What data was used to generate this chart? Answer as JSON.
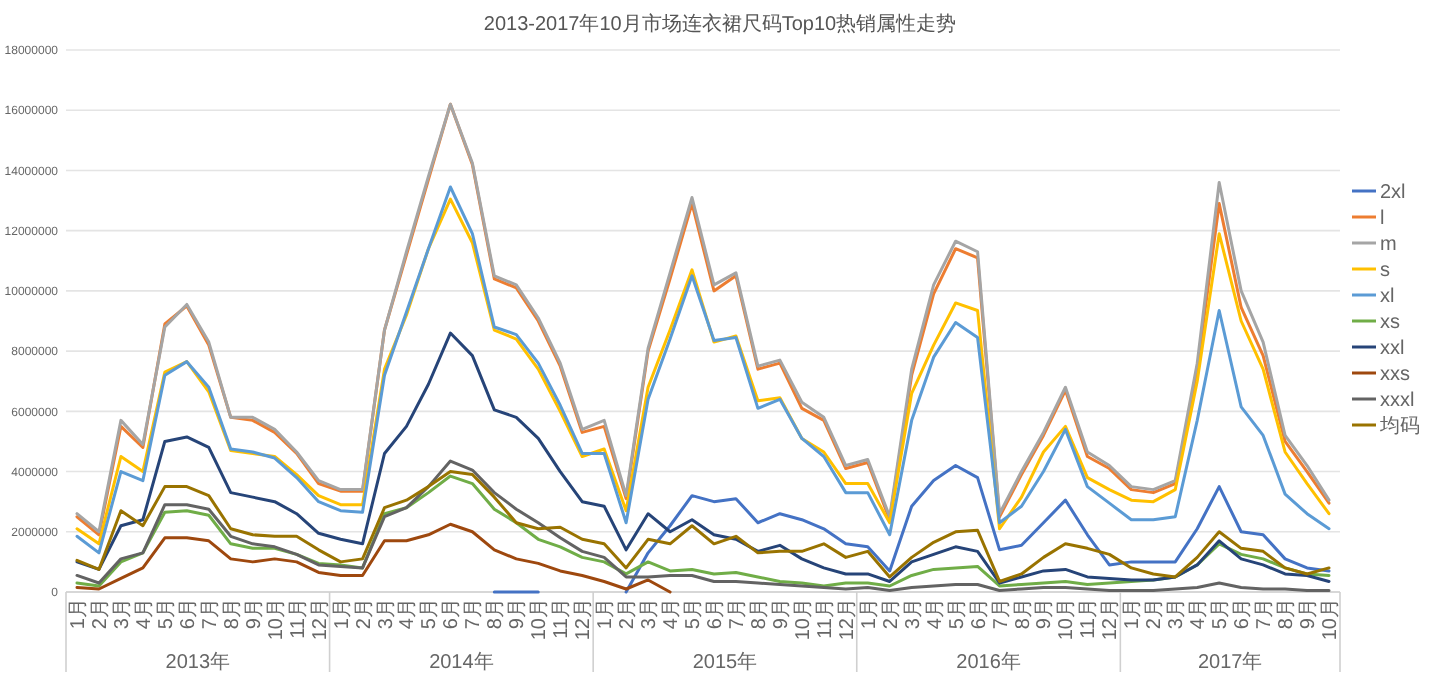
{
  "chart_data": {
    "type": "line",
    "title": "2013-2017年10月市场连衣裙尺码Top10热销属性走势",
    "categories": [
      "1月",
      "2月",
      "3月",
      "4月",
      "5月",
      "6月",
      "7月",
      "8月",
      "9月",
      "10月",
      "11月",
      "12月",
      "1月",
      "2月",
      "3月",
      "4月",
      "5月",
      "6月",
      "7月",
      "8月",
      "9月",
      "10月",
      "11月",
      "12月",
      "1月",
      "2月",
      "3月",
      "4月",
      "5月",
      "6月",
      "7月",
      "8月",
      "9月",
      "10月",
      "11月",
      "12月",
      "1月",
      "2月",
      "3月",
      "4月",
      "5月",
      "6月",
      "7月",
      "8月",
      "9月",
      "10月",
      "11月",
      "12月",
      "1月",
      "2月",
      "3月",
      "4月",
      "5月",
      "6月",
      "7月",
      "8月",
      "9月",
      "10月"
    ],
    "annotations": [
      "2013年",
      "2014年",
      "2015年",
      "2016年",
      "2017年"
    ],
    "ylim": [
      0,
      18000000
    ],
    "yticks": [
      0,
      2000000,
      4000000,
      6000000,
      8000000,
      10000000,
      12000000,
      14000000,
      16000000,
      18000000
    ],
    "grid": "y",
    "legend": "right",
    "marker": "none",
    "line_style": "solid",
    "series": [
      {
        "name": "2xl",
        "color": "#4472c4",
        "values": [
          null,
          null,
          null,
          null,
          null,
          null,
          null,
          null,
          null,
          null,
          null,
          null,
          null,
          null,
          null,
          null,
          null,
          null,
          null,
          0,
          0,
          0,
          null,
          null,
          null,
          0,
          1300000.0,
          2200000.0,
          3200000.0,
          3000000.0,
          3100000.0,
          2300000.0,
          2600000.0,
          2400000.0,
          2100000.0,
          1600000.0,
          1500000.0,
          700000.0,
          2850000.0,
          3700000.0,
          4200000.0,
          3800000.0,
          1400000.0,
          1550000.0,
          2300000.0,
          3050000.0,
          1900000.0,
          900000.0,
          1000000.0,
          1000000.0,
          1000000.0,
          2100000.0,
          3500000.0,
          2000000.0,
          1900000.0,
          1100000.0,
          800000.0,
          700000.0
        ]
      },
      {
        "name": "l",
        "color": "#ed7d31",
        "values": [
          2500000.0,
          1900000.0,
          5500000.0,
          4800000.0,
          8900000.0,
          9500000.0,
          8200000.0,
          5800000.0,
          5700000.0,
          5300000.0,
          4600000.0,
          3600000.0,
          3350000.0,
          3350000.0,
          8700000.0,
          11200000.0,
          13700000.0,
          16200000.0,
          14200000.0,
          10400000.0,
          10100000.0,
          9000000.0,
          7500000.0,
          5300000.0,
          5500000.0,
          3100000.0,
          8000000.0,
          10400000.0,
          12900000.0,
          10000000.0,
          10500000.0,
          7400000.0,
          7600000.0,
          6100000.0,
          5700000.0,
          4100000.0,
          4300000.0,
          2400000.0,
          7200000.0,
          9900000.0,
          11400000.0,
          11100000.0,
          2500000.0,
          3900000.0,
          5200000.0,
          6700000.0,
          4500000.0,
          4100000.0,
          3400000.0,
          3300000.0,
          3600000.0,
          7400000.0,
          12900000.0,
          9450000.0,
          7850000.0,
          5000000.0,
          4000000.0,
          2950000.0
        ]
      },
      {
        "name": "m",
        "color": "#a5a5a5",
        "values": [
          2600000.0,
          2000000.0,
          5700000.0,
          4900000.0,
          8800000.0,
          9550000.0,
          8300000.0,
          5800000.0,
          5800000.0,
          5400000.0,
          4650000.0,
          3700000.0,
          3400000.0,
          3400000.0,
          8700000.0,
          11300000.0,
          13800000.0,
          16200000.0,
          14250000.0,
          10500000.0,
          10200000.0,
          9100000.0,
          7600000.0,
          5400000.0,
          5700000.0,
          3200000.0,
          8100000.0,
          10600000.0,
          13100000.0,
          10200000.0,
          10600000.0,
          7500000.0,
          7700000.0,
          6300000.0,
          5800000.0,
          4200000.0,
          4400000.0,
          2500000.0,
          7400000.0,
          10200000.0,
          11650000.0,
          11300000.0,
          2600000.0,
          4000000.0,
          5300000.0,
          6800000.0,
          4650000.0,
          4200000.0,
          3500000.0,
          3400000.0,
          3700000.0,
          7600000.0,
          13600000.0,
          10000000.0,
          8300000.0,
          5200000.0,
          4200000.0,
          3050000.0
        ]
      },
      {
        "name": "s",
        "color": "#ffc000",
        "values": [
          2100000.0,
          1600000.0,
          4500000.0,
          4000000.0,
          7300000.0,
          7650000.0,
          6650000.0,
          4700000.0,
          4600000.0,
          4500000.0,
          3900000.0,
          3200000.0,
          2900000.0,
          2900000.0,
          7400000.0,
          9200000.0,
          11400000.0,
          13050000.0,
          11600000.0,
          8700000.0,
          8400000.0,
          7400000.0,
          6000000.0,
          4500000.0,
          4750000.0,
          2700000.0,
          6800000.0,
          8700000.0,
          10700000.0,
          8300000.0,
          8500000.0,
          6350000.0,
          6450000.0,
          5100000.0,
          4650000.0,
          3600000.0,
          3600000.0,
          2300000.0,
          6600000.0,
          8200000.0,
          9600000.0,
          9350000.0,
          2100000.0,
          3150000.0,
          4650000.0,
          5500000.0,
          3800000.0,
          3400000.0,
          3050000.0,
          3000000.0,
          3400000.0,
          7000000.0,
          11900000.0,
          9000000.0,
          7400000.0,
          4650000.0,
          3600000.0,
          2600000.0
        ]
      },
      {
        "name": "xl",
        "color": "#5b9bd5",
        "values": [
          1850000.0,
          1300000.0,
          4000000.0,
          3700000.0,
          7200000.0,
          7650000.0,
          6800000.0,
          4750000.0,
          4650000.0,
          4450000.0,
          3800000.0,
          3000000.0,
          2700000.0,
          2650000.0,
          7200000.0,
          9300000.0,
          11400000.0,
          13450000.0,
          11900000.0,
          8800000.0,
          8550000.0,
          7600000.0,
          6200000.0,
          4600000.0,
          4600000.0,
          2300000.0,
          6400000.0,
          8400000.0,
          10500000.0,
          8350000.0,
          8450000.0,
          6100000.0,
          6400000.0,
          5100000.0,
          4500000.0,
          3300000.0,
          3300000.0,
          1900000.0,
          5700000.0,
          7800000.0,
          8950000.0,
          8450000.0,
          2300000.0,
          2850000.0,
          4000000.0,
          5400000.0,
          3500000.0,
          2950000.0,
          2400000.0,
          2400000.0,
          2500000.0,
          5700000.0,
          9350000.0,
          6150000.0,
          5200000.0,
          3250000.0,
          2600000.0,
          2100000.0
        ]
      },
      {
        "name": "xs",
        "color": "#70ad47",
        "values": [
          300000.0,
          200000.0,
          1000000.0,
          1300000.0,
          2650000.0,
          2700000.0,
          2550000.0,
          1600000.0,
          1450000.0,
          1450000.0,
          1250000.0,
          950000.0,
          900000.0,
          800000.0,
          2600000.0,
          2800000.0,
          3300000.0,
          3850000.0,
          3600000.0,
          2750000.0,
          2300000.0,
          1750000.0,
          1500000.0,
          1150000.0,
          1000000.0,
          600000.0,
          1000000.0,
          700000.0,
          750000.0,
          600000.0,
          650000.0,
          500000.0,
          350000.0,
          300000.0,
          200000.0,
          300000.0,
          300000.0,
          200000.0,
          550000.0,
          750000.0,
          800000.0,
          850000.0,
          200000.0,
          250000.0,
          300000.0,
          350000.0,
          250000.0,
          300000.0,
          350000.0,
          400000.0,
          500000.0,
          900000.0,
          1600000.0,
          1250000.0,
          1100000.0,
          800000.0,
          600000.0,
          550000.0
        ]
      },
      {
        "name": "xxl",
        "color": "#264478",
        "values": [
          1000000.0,
          750000.0,
          2200000.0,
          2400000.0,
          5000000.0,
          5150000.0,
          4800000.0,
          3300000.0,
          3150000.0,
          3000000.0,
          2600000.0,
          1950000.0,
          1750000.0,
          1600000.0,
          4600000.0,
          5500000.0,
          6900000.0,
          8600000.0,
          7850000.0,
          6050000.0,
          5800000.0,
          5100000.0,
          4000000.0,
          3000000.0,
          2850000.0,
          1400000.0,
          2600000.0,
          2000000.0,
          2400000.0,
          1900000.0,
          1750000.0,
          1350000.0,
          1550000.0,
          1100000.0,
          800000.0,
          600000.0,
          600000.0,
          350000.0,
          1000000.0,
          1250000.0,
          1500000.0,
          1350000.0,
          300000.0,
          500000.0,
          700000.0,
          750000.0,
          500000.0,
          450000.0,
          400000.0,
          400000.0,
          500000.0,
          900000.0,
          1700000.0,
          1100000.0,
          900000.0,
          600000.0,
          550000.0,
          350000.0
        ]
      },
      {
        "name": "xxs",
        "color": "#9e480e",
        "values": [
          150000.0,
          100000.0,
          450000.0,
          800000.0,
          1800000.0,
          1800000.0,
          1700000.0,
          1100000.0,
          1000000.0,
          1100000.0,
          1000000.0,
          650000.0,
          550000.0,
          550000.0,
          1700000.0,
          1700000.0,
          1900000.0,
          2250000.0,
          2000000.0,
          1400000.0,
          1100000.0,
          950000.0,
          700000.0,
          550000.0,
          350000.0,
          100000.0,
          400000.0,
          0,
          null,
          null,
          null,
          null,
          null,
          null,
          null,
          null,
          null,
          null,
          null,
          null,
          null,
          null,
          null,
          null,
          null,
          null,
          null,
          null,
          null,
          null,
          null,
          null,
          null,
          null,
          null,
          null,
          null,
          null
        ]
      },
      {
        "name": "xxxl",
        "color": "#636363",
        "values": [
          550000.0,
          300000.0,
          1100000.0,
          1300000.0,
          2900000.0,
          2900000.0,
          2750000.0,
          1850000.0,
          1600000.0,
          1500000.0,
          1250000.0,
          900000.0,
          850000.0,
          800000.0,
          2500000.0,
          2800000.0,
          3500000.0,
          4350000.0,
          4050000.0,
          3300000.0,
          2750000.0,
          2300000.0,
          1800000.0,
          1350000.0,
          1150000.0,
          500000.0,
          500000.0,
          550000.0,
          550000.0,
          350000.0,
          350000.0,
          300000.0,
          250000.0,
          200000.0,
          150000.0,
          100000.0,
          150000.0,
          50000.0,
          150000.0,
          200000.0,
          250000.0,
          250000.0,
          50000.0,
          100000.0,
          150000.0,
          150000.0,
          100000.0,
          50000.0,
          50000.0,
          50000.0,
          100000.0,
          150000.0,
          300000.0,
          150000.0,
          100000.0,
          100000.0,
          50000.0,
          50000.0
        ]
      },
      {
        "name": "均码",
        "color": "#997300",
        "values": [
          1050000.0,
          750000.0,
          2700000.0,
          2200000.0,
          3500000.0,
          3500000.0,
          3200000.0,
          2100000.0,
          1900000.0,
          1850000.0,
          1850000.0,
          1400000.0,
          1000000.0,
          1100000.0,
          2800000.0,
          3050000.0,
          3500000.0,
          4000000.0,
          3900000.0,
          3150000.0,
          2300000.0,
          2100000.0,
          2150000.0,
          1750000.0,
          1600000.0,
          800000.0,
          1750000.0,
          1600000.0,
          2200000.0,
          1600000.0,
          1850000.0,
          1300000.0,
          1350000.0,
          1350000.0,
          1600000.0,
          1150000.0,
          1350000.0,
          500000.0,
          1150000.0,
          1650000.0,
          2000000.0,
          2050000.0,
          350000.0,
          600000.0,
          1150000.0,
          1600000.0,
          1450000.0,
          1250000.0,
          800000.0,
          600000.0,
          500000.0,
          1150000.0,
          2000000.0,
          1450000.0,
          1350000.0,
          800000.0,
          600000.0,
          800000.0
        ]
      }
    ]
  }
}
